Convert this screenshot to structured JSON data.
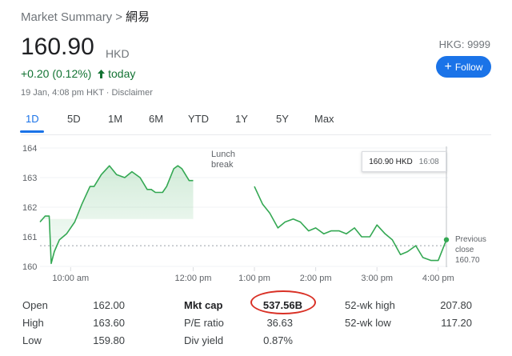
{
  "breadcrumb": {
    "parent": "Market Summary",
    "separator": ">",
    "current": "網易"
  },
  "quote": {
    "price": "160.90",
    "currency": "HKD",
    "change": "+0.20 (0.12%)",
    "period": "today",
    "timestamp": "19 Jan, 4:08 pm HKT · Disclaimer",
    "ticker": "HKG: 9999",
    "follow_label": "Follow"
  },
  "tabs": [
    {
      "label": "1D",
      "active": true
    },
    {
      "label": "5D"
    },
    {
      "label": "1M"
    },
    {
      "label": "6M"
    },
    {
      "label": "YTD"
    },
    {
      "label": "1Y"
    },
    {
      "label": "5Y"
    },
    {
      "label": "Max"
    }
  ],
  "chart_data": {
    "type": "line",
    "title": "",
    "xlabel": "",
    "ylabel": "",
    "y_ticks": [
      "164",
      "163",
      "162",
      "161",
      "160"
    ],
    "x_ticks": [
      "10:00 am",
      "12:00 pm",
      "1:00 pm",
      "2:00 pm",
      "3:00 pm",
      "4:00 pm"
    ],
    "ylim": [
      160,
      164.3
    ],
    "previous_close": 160.7,
    "previous_close_label": [
      "Previous",
      "close",
      "160.70"
    ],
    "annotation": [
      "Lunch",
      "break"
    ],
    "tooltip": {
      "price": "160.90 HKD",
      "time": "16:08"
    },
    "series": [
      {
        "session": "morning",
        "x": [
          "09:30",
          "09:35",
          "09:39",
          "09:41",
          "09:44",
          "09:49",
          "09:56",
          "10:04",
          "10:11",
          "10:19",
          "10:23",
          "10:30",
          "10:38",
          "10:45",
          "10:53",
          "11:00",
          "11:08",
          "11:15",
          "11:19",
          "11:23",
          "11:30",
          "11:34",
          "11:41",
          "11:45",
          "11:49",
          "11:56",
          "12:00"
        ],
        "y": [
          161.5,
          161.7,
          161.7,
          160.1,
          160.5,
          160.9,
          161.1,
          161.5,
          162.1,
          162.7,
          162.7,
          163.1,
          163.4,
          163.1,
          163.0,
          163.2,
          163.0,
          162.6,
          162.6,
          162.5,
          162.5,
          162.7,
          163.3,
          163.4,
          163.3,
          162.9,
          162.9
        ]
      },
      {
        "session": "afternoon",
        "x": [
          "13:00",
          "13:08",
          "13:15",
          "13:23",
          "13:30",
          "13:38",
          "13:45",
          "13:53",
          "14:00",
          "14:08",
          "14:15",
          "14:23",
          "14:30",
          "14:38",
          "14:45",
          "14:53",
          "15:00",
          "15:08",
          "15:15",
          "15:23",
          "15:30",
          "15:38",
          "15:45",
          "15:53",
          "16:00",
          "16:08"
        ],
        "y": [
          162.7,
          162.1,
          161.8,
          161.3,
          161.5,
          161.6,
          161.5,
          161.2,
          161.3,
          161.1,
          161.2,
          161.2,
          161.1,
          161.3,
          161.0,
          161.0,
          161.4,
          161.1,
          160.9,
          160.4,
          160.5,
          160.7,
          160.3,
          160.2,
          160.2,
          160.9
        ]
      }
    ]
  },
  "stats": [
    [
      {
        "label": "Open",
        "value": "162.00"
      },
      {
        "label": "High",
        "value": "163.60"
      },
      {
        "label": "Low",
        "value": "159.80"
      }
    ],
    [
      {
        "label": "Mkt cap",
        "value": "537.56B",
        "emphasized": true
      },
      {
        "label": "P/E ratio",
        "value": "36.63"
      },
      {
        "label": "Div yield",
        "value": "0.87%"
      }
    ],
    [
      {
        "label": "52-wk high",
        "value": "207.80"
      },
      {
        "label": "52-wk low",
        "value": "117.20"
      }
    ]
  ],
  "colors": {
    "up_green": "#137333",
    "line_green": "#34a853",
    "accent_blue": "#1a73e8",
    "highlight_red": "#d93025"
  }
}
